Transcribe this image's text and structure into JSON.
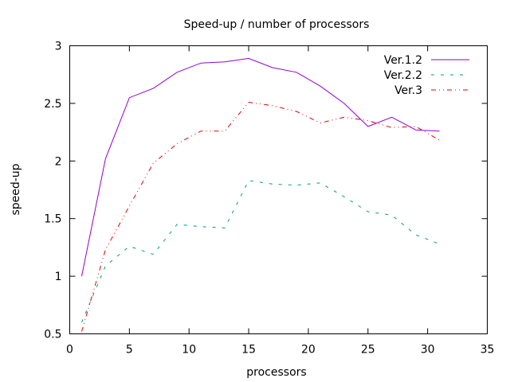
{
  "chart_data": {
    "type": "line",
    "title": "Speed-up / number of processors",
    "xlabel": "processors",
    "ylabel": "speed-up",
    "xlim": [
      0,
      35
    ],
    "ylim": [
      0.5,
      3
    ],
    "xticks": [
      0,
      5,
      10,
      15,
      20,
      25,
      30,
      35
    ],
    "yticks": [
      0.5,
      1,
      1.5,
      2,
      2.5,
      3
    ],
    "x_tick_labels": [
      "0",
      "5",
      "10",
      "15",
      "20",
      "25",
      "30",
      "35"
    ],
    "y_tick_labels": [
      "0.5",
      "1",
      "1.5",
      "2",
      "2.5",
      "3"
    ],
    "grid": false,
    "legend_position": "top-right",
    "series": [
      {
        "name": "Ver.1.2",
        "color": "#9400d3",
        "dash": "solid",
        "x": [
          1,
          3,
          5,
          7,
          9,
          11,
          13,
          15,
          17,
          19,
          21,
          23,
          25,
          27,
          29,
          31
        ],
        "y": [
          1.0,
          2.02,
          2.55,
          2.63,
          2.77,
          2.85,
          2.86,
          2.89,
          2.81,
          2.77,
          2.65,
          2.5,
          2.3,
          2.38,
          2.27,
          2.26
        ]
      },
      {
        "name": "Ver.2.2",
        "color": "#009e73",
        "dash": "dashed",
        "x": [
          1,
          3,
          5,
          7,
          9,
          11,
          13,
          15,
          17,
          19,
          21,
          23,
          25,
          27,
          29,
          31
        ],
        "y": [
          0.6,
          1.09,
          1.26,
          1.19,
          1.45,
          1.43,
          1.42,
          1.83,
          1.8,
          1.79,
          1.81,
          1.69,
          1.56,
          1.53,
          1.36,
          1.28
        ]
      },
      {
        "name": "Ver.3",
        "color": "#e00000",
        "dash": "dash-dot-dot",
        "x": [
          1,
          3,
          5,
          7,
          9,
          11,
          13,
          15,
          17,
          19,
          21,
          23,
          25,
          27,
          29,
          31
        ],
        "y": [
          0.52,
          1.23,
          1.61,
          1.98,
          2.15,
          2.26,
          2.26,
          2.51,
          2.48,
          2.43,
          2.33,
          2.38,
          2.35,
          2.29,
          2.3,
          2.18
        ]
      }
    ]
  }
}
